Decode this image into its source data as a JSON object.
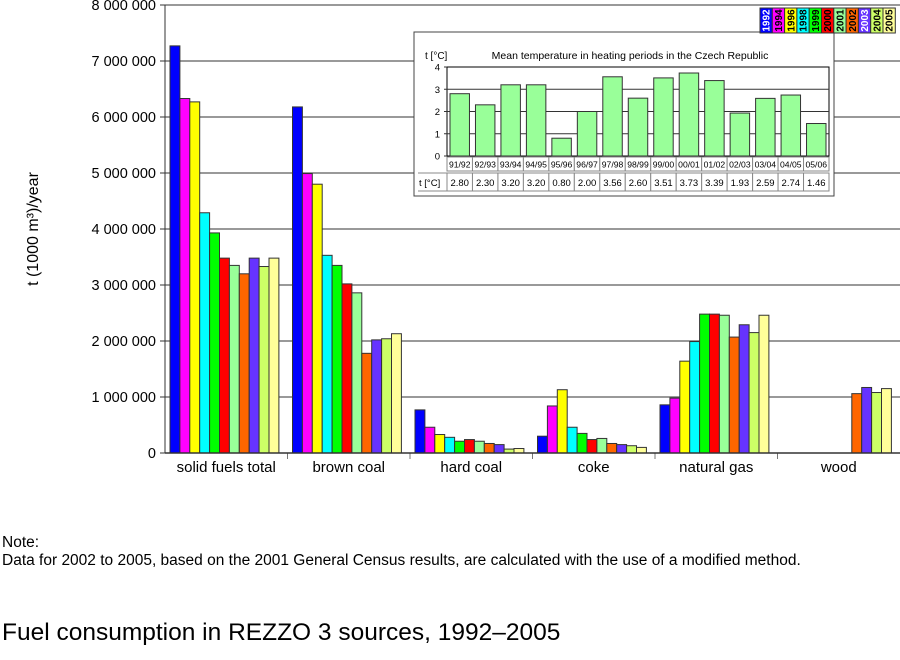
{
  "chart_data": [
    {
      "type": "bar",
      "title": "Fuel consumption in REZZO 3 sources, 1992–2005",
      "xlabel": "",
      "ylabel": "t (1000 m³)/year",
      "ylim": [
        0,
        8000000
      ],
      "yticks": [
        0,
        1000000,
        2000000,
        3000000,
        4000000,
        5000000,
        6000000,
        7000000,
        8000000
      ],
      "ytick_labels": [
        "0",
        "1 000 000",
        "2 000 000",
        "3 000 000",
        "4 000 000",
        "5 000 000",
        "6 000 000",
        "7 000 000",
        "8 000 000"
      ],
      "grid": true,
      "legend_position": "top-right",
      "categories": [
        "solid fuels total",
        "brown coal",
        "hard coal",
        "coke",
        "natural gas",
        "wood"
      ],
      "series": [
        {
          "name": "1992",
          "color": "#0000ff",
          "text_color": "#ffffff",
          "values": [
            7270000,
            6180000,
            770000,
            300000,
            860000,
            0
          ]
        },
        {
          "name": "1994",
          "color": "#ff00ff",
          "text_color": "#000000",
          "values": [
            6330000,
            4990000,
            460000,
            840000,
            980000,
            0
          ]
        },
        {
          "name": "1996",
          "color": "#ffff00",
          "text_color": "#000000",
          "values": [
            6270000,
            4800000,
            330000,
            1130000,
            1640000,
            0
          ]
        },
        {
          "name": "1998",
          "color": "#00ffff",
          "text_color": "#000000",
          "values": [
            4290000,
            3530000,
            280000,
            460000,
            1990000,
            0
          ]
        },
        {
          "name": "1999",
          "color": "#00ff00",
          "text_color": "#000000",
          "values": [
            3930000,
            3350000,
            210000,
            350000,
            2480000,
            0
          ]
        },
        {
          "name": "2000",
          "color": "#ff0000",
          "text_color": "#000000",
          "values": [
            3480000,
            3020000,
            240000,
            240000,
            2480000,
            0
          ]
        },
        {
          "name": "2001",
          "color": "#99ff99",
          "text_color": "#000000",
          "values": [
            3350000,
            2860000,
            210000,
            260000,
            2460000,
            0
          ]
        },
        {
          "name": "2002",
          "color": "#ff6600",
          "text_color": "#000000",
          "values": [
            3200000,
            1780000,
            170000,
            170000,
            2070000,
            1060000
          ]
        },
        {
          "name": "2003",
          "color": "#6633ff",
          "text_color": "#ffffff",
          "values": [
            3480000,
            2020000,
            150000,
            150000,
            2290000,
            1170000
          ]
        },
        {
          "name": "2004",
          "color": "#ccff66",
          "text_color": "#000000",
          "values": [
            3330000,
            2040000,
            70000,
            130000,
            2150000,
            1080000
          ]
        },
        {
          "name": "2005",
          "color": "#ffff99",
          "text_color": "#000000",
          "values": [
            3480000,
            2130000,
            80000,
            100000,
            2460000,
            1150000
          ]
        }
      ]
    },
    {
      "type": "bar",
      "title": "Mean temperature in heating periods in the Czech Republic",
      "ylabel": "t [°C]",
      "ylim": [
        0,
        4
      ],
      "yticks": [
        0,
        1,
        2,
        3,
        4
      ],
      "ytick_labels": [
        "0",
        "1",
        "2",
        "3",
        "4"
      ],
      "grid": true,
      "bar_color": "#99ff99",
      "table_row_label": "t [°C]",
      "categories": [
        "91/92",
        "92/93",
        "93/94",
        "94/95",
        "95/96",
        "96/97",
        "97/98",
        "98/99",
        "99/00",
        "00/01",
        "01/02",
        "02/03",
        "03/04",
        "04/05",
        "05/06"
      ],
      "values": [
        2.8,
        2.3,
        3.2,
        3.2,
        0.8,
        2.0,
        3.56,
        2.6,
        3.51,
        3.73,
        3.39,
        1.93,
        2.59,
        2.74,
        1.46
      ],
      "value_labels": [
        "2.80",
        "2.30",
        "3.20",
        "3.20",
        "0.80",
        "2.00",
        "3.56",
        "2.60",
        "3.51",
        "3.73",
        "3.39",
        "1.93",
        "2.59",
        "2.74",
        "1.46"
      ]
    }
  ],
  "note": {
    "label": "Note:",
    "text": "Data for 2002 to 2005, based on the 2001 General Census results, are calculated with the use of a modified method."
  },
  "page_title": "Fuel consumption in REZZO 3 sources, 1992–2005"
}
